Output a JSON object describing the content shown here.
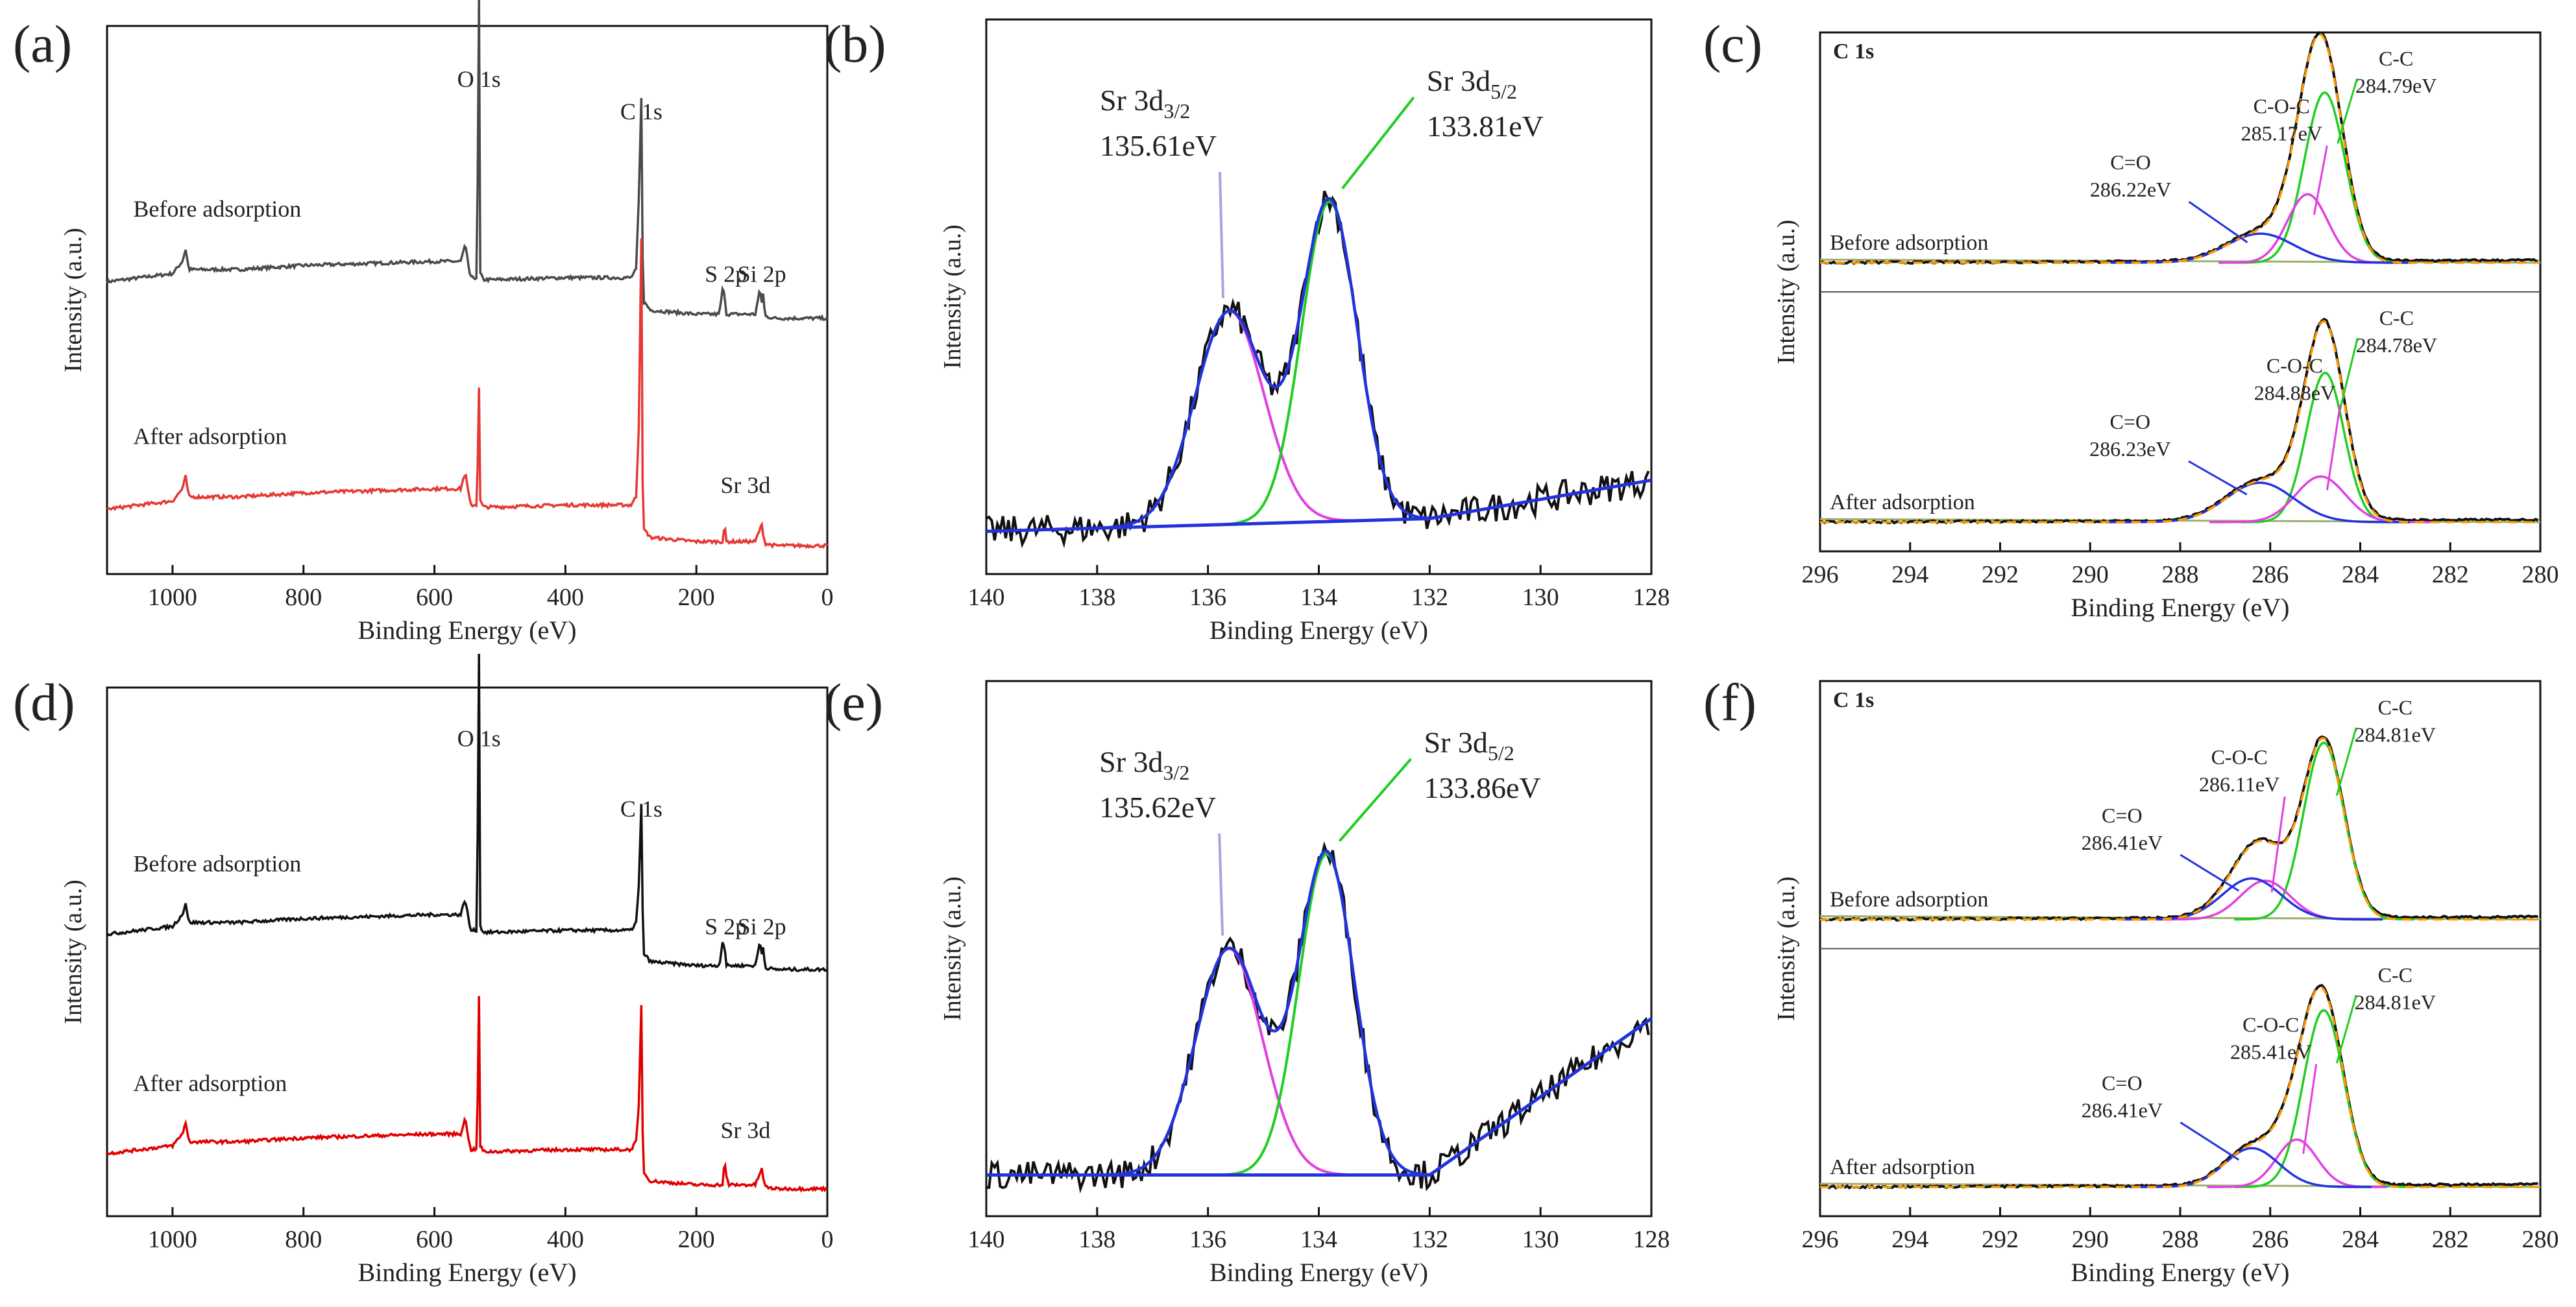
{
  "figure": {
    "description_labels": [
      "(a)",
      "(b)",
      "(c)",
      "(d)",
      "(e)",
      "(f)"
    ]
  },
  "chart_data": [
    {
      "id": "a",
      "type": "line",
      "panel_label": "(a)",
      "xlabel": "Binding Energy (eV)",
      "ylabel": "Intensity (a.u.)",
      "xlim": [
        1100,
        0
      ],
      "xticks": [
        1000,
        800,
        600,
        400,
        200,
        0
      ],
      "series": [
        {
          "name": "Before adsorption",
          "color": "#4a4a4a",
          "offset": 0.62,
          "x": [
            1100,
            1000,
            985,
            980,
            975,
            900,
            800,
            700,
            600,
            560,
            553,
            545,
            535,
            532,
            530,
            525,
            510,
            400,
            300,
            292,
            288,
            284,
            282,
            280,
            270,
            200,
            165,
            160,
            157,
            154,
            150,
            110,
            103,
            100,
            98,
            95,
            80,
            0
          ],
          "y": [
            0.0,
            0.02,
            0.05,
            0.08,
            0.03,
            0.03,
            0.04,
            0.045,
            0.05,
            0.05,
            0.09,
            0.01,
            0.01,
            0.7,
            0.02,
            0.005,
            0.005,
            0.01,
            0.01,
            0.03,
            0.2,
            0.45,
            0.06,
            -0.05,
            -0.07,
            -0.08,
            -0.08,
            -0.02,
            -0.03,
            -0.08,
            -0.08,
            -0.08,
            -0.02,
            -0.05,
            -0.03,
            -0.085,
            -0.09,
            -0.09
          ]
        },
        {
          "name": "After adsorption",
          "color": "#e53935",
          "offset": 0.06,
          "x": [
            1100,
            1000,
            985,
            980,
            975,
            900,
            800,
            700,
            600,
            560,
            553,
            545,
            535,
            532,
            530,
            525,
            510,
            400,
            300,
            292,
            288,
            284,
            282,
            280,
            270,
            200,
            160,
            157,
            154,
            150,
            110,
            103,
            100,
            98,
            95,
            80,
            0
          ],
          "y": [
            0.0,
            0.02,
            0.05,
            0.08,
            0.03,
            0.03,
            0.04,
            0.045,
            0.05,
            0.05,
            0.09,
            0.01,
            0.01,
            0.3,
            0.02,
            0.005,
            0.005,
            0.01,
            0.01,
            0.03,
            0.2,
            0.67,
            0.06,
            -0.05,
            -0.07,
            -0.08,
            -0.08,
            -0.04,
            -0.08,
            -0.08,
            -0.08,
            -0.05,
            -0.04,
            -0.06,
            -0.085,
            -0.09,
            -0.09
          ]
        }
      ],
      "annotations": [
        {
          "text": "O 1s",
          "x": 532,
          "y": 1.1
        },
        {
          "text": "C 1s",
          "x": 284,
          "y": 1.02
        },
        {
          "text": "S 2p",
          "x": 155,
          "y": 0.62
        },
        {
          "text": "Si 2p",
          "x": 100,
          "y": 0.62
        },
        {
          "text": "Sr 3d",
          "x": 125,
          "y": 0.1
        },
        {
          "text": "Before adsorption",
          "x": 1060,
          "y": 0.78
        },
        {
          "text": "After adsorption",
          "x": 1060,
          "y": 0.22
        }
      ],
      "ylim": [
        -0.1,
        1.25
      ]
    },
    {
      "id": "b",
      "type": "line",
      "panel_label": "(b)",
      "xlabel": "Binding Energy (eV)",
      "ylabel": "Intensity (a.u.)",
      "xlim": [
        140,
        128
      ],
      "xticks": [
        140,
        138,
        136,
        134,
        132,
        130,
        128
      ],
      "ylim": [
        -0.1,
        1.2
      ],
      "baseline": {
        "x": [
          140,
          132,
          128
        ],
        "y": [
          0.0,
          0.03,
          0.12
        ]
      },
      "peaks": [
        {
          "name": "Sr 3d3/2",
          "center": 135.61,
          "height": 0.5,
          "sigma": 0.62,
          "color": "#e040e0"
        },
        {
          "name": "Sr 3d5/2",
          "center": 133.81,
          "height": 0.75,
          "sigma": 0.5,
          "color": "#22cc22"
        }
      ],
      "labels": [
        {
          "title": "Sr 3d",
          "sub": "3/2",
          "energy": "135.61eV"
        },
        {
          "title": "Sr 3d",
          "sub": "5/2",
          "energy": "133.81eV"
        }
      ]
    },
    {
      "id": "c",
      "type": "line",
      "panel_label": "(c)",
      "title": "C 1s",
      "xlabel": "Binding Energy (eV)",
      "ylabel": "Intensity (a.u.)",
      "xlim": [
        296,
        280
      ],
      "xticks": [
        296,
        294,
        292,
        290,
        288,
        286,
        284,
        282,
        280
      ],
      "spectra": [
        {
          "name": "Before adsorption",
          "peaks": [
            {
              "name": "C-C",
              "center": 284.79,
              "height": 0.82,
              "sigma": 0.45,
              "color": "#22cc22",
              "energy": "284.79eV"
            },
            {
              "name": "C-O-C",
              "center": 285.17,
              "height": 0.33,
              "sigma": 0.45,
              "color": "#e040e0",
              "energy": "285.17eV"
            },
            {
              "name": "C=O",
              "center": 286.22,
              "height": 0.14,
              "sigma": 0.75,
              "color": "#2233dd",
              "energy": "286.22eV"
            }
          ]
        },
        {
          "name": "After adsorption",
          "peaks": [
            {
              "name": "C-C",
              "center": 284.78,
              "height": 0.72,
              "sigma": 0.42,
              "color": "#22cc22",
              "energy": "284.78eV"
            },
            {
              "name": "C-O-C",
              "center": 284.88,
              "height": 0.22,
              "sigma": 0.55,
              "color": "#e040e0",
              "energy": "284.88eV"
            },
            {
              "name": "C=O",
              "center": 286.23,
              "height": 0.19,
              "sigma": 0.75,
              "color": "#2233dd",
              "energy": "286.23eV"
            }
          ]
        }
      ]
    },
    {
      "id": "d",
      "type": "line",
      "panel_label": "(d)",
      "xlabel": "Binding Energy (eV)",
      "ylabel": "Intensity (a.u.)",
      "xlim": [
        1100,
        0
      ],
      "xticks": [
        1000,
        800,
        600,
        400,
        200,
        0
      ],
      "series": [
        {
          "name": "Before adsorption",
          "color": "#111111",
          "offset": 0.62,
          "x": [
            1100,
            1000,
            985,
            980,
            975,
            900,
            800,
            700,
            600,
            560,
            553,
            545,
            535,
            532,
            530,
            525,
            510,
            400,
            300,
            292,
            288,
            284,
            282,
            280,
            270,
            200,
            165,
            160,
            157,
            154,
            150,
            110,
            103,
            100,
            98,
            95,
            80,
            0
          ],
          "y": [
            0.0,
            0.02,
            0.05,
            0.08,
            0.03,
            0.03,
            0.04,
            0.045,
            0.05,
            0.05,
            0.09,
            0.01,
            0.01,
            0.72,
            0.02,
            0.005,
            0.005,
            0.01,
            0.01,
            0.03,
            0.12,
            0.33,
            0.06,
            -0.05,
            -0.07,
            -0.08,
            -0.08,
            -0.02,
            -0.03,
            -0.08,
            -0.08,
            -0.08,
            -0.02,
            -0.05,
            -0.03,
            -0.085,
            -0.09,
            -0.09
          ]
        },
        {
          "name": "After adsorption",
          "color": "#e00000",
          "offset": 0.06,
          "x": [
            1100,
            1000,
            985,
            980,
            975,
            900,
            800,
            700,
            600,
            560,
            553,
            545,
            535,
            532,
            530,
            525,
            510,
            400,
            300,
            292,
            288,
            284,
            282,
            280,
            270,
            200,
            160,
            157,
            154,
            150,
            110,
            103,
            100,
            98,
            95,
            80,
            0
          ],
          "y": [
            0.0,
            0.02,
            0.05,
            0.08,
            0.03,
            0.03,
            0.04,
            0.045,
            0.05,
            0.05,
            0.09,
            0.01,
            0.01,
            0.4,
            0.02,
            0.005,
            0.005,
            0.01,
            0.01,
            0.03,
            0.12,
            0.38,
            0.06,
            -0.05,
            -0.07,
            -0.08,
            -0.08,
            -0.02,
            -0.06,
            -0.08,
            -0.08,
            -0.05,
            -0.04,
            -0.06,
            -0.085,
            -0.09,
            -0.09
          ]
        }
      ],
      "annotations": [
        {
          "text": "O 1s",
          "x": 532,
          "y": 1.1
        },
        {
          "text": "C 1s",
          "x": 284,
          "y": 0.92
        },
        {
          "text": "S 2p",
          "x": 155,
          "y": 0.62
        },
        {
          "text": "Si 2p",
          "x": 100,
          "y": 0.62
        },
        {
          "text": "Sr 3d",
          "x": 125,
          "y": 0.1
        },
        {
          "text": "Before adsorption",
          "x": 1060,
          "y": 0.78
        },
        {
          "text": "After adsorption",
          "x": 1060,
          "y": 0.22
        }
      ],
      "ylim": [
        -0.1,
        1.25
      ]
    },
    {
      "id": "e",
      "type": "line",
      "panel_label": "(e)",
      "xlabel": "Binding Energy (eV)",
      "ylabel": "Intensity (a.u.)",
      "xlim": [
        140,
        128
      ],
      "xticks": [
        140,
        138,
        136,
        134,
        132,
        130,
        128
      ],
      "ylim": [
        -0.1,
        1.2
      ],
      "baseline": {
        "x": [
          140,
          132,
          128
        ],
        "y": [
          0.0,
          0.0,
          0.38
        ]
      },
      "peaks": [
        {
          "name": "Sr 3d3/2",
          "center": 135.62,
          "height": 0.55,
          "sigma": 0.6,
          "color": "#e040e0"
        },
        {
          "name": "Sr 3d5/2",
          "center": 133.86,
          "height": 0.78,
          "sigma": 0.5,
          "color": "#22cc22"
        }
      ],
      "labels": [
        {
          "title": "Sr 3d",
          "sub": "3/2",
          "energy": "135.62eV"
        },
        {
          "title": "Sr 3d",
          "sub": "5/2",
          "energy": "133.86eV"
        }
      ]
    },
    {
      "id": "f",
      "type": "line",
      "panel_label": "(f)",
      "title": "C 1s",
      "xlabel": "Binding Energy (eV)",
      "ylabel": "Intensity (a.u.)",
      "xlim": [
        296,
        280
      ],
      "xticks": [
        296,
        294,
        292,
        290,
        288,
        286,
        284,
        282,
        280
      ],
      "spectra": [
        {
          "name": "Before adsorption",
          "peaks": [
            {
              "name": "C-C",
              "center": 284.81,
              "height": 0.82,
              "sigma": 0.45,
              "color": "#22cc22",
              "energy": "284.81eV"
            },
            {
              "name": "C-O-C",
              "center": 286.11,
              "height": 0.18,
              "sigma": 0.55,
              "color": "#e040e0",
              "energy": "286.11eV"
            },
            {
              "name": "C=O",
              "center": 286.41,
              "height": 0.19,
              "sigma": 0.65,
              "color": "#2233dd",
              "energy": "286.41eV"
            }
          ]
        },
        {
          "name": "After adsorption",
          "peaks": [
            {
              "name": "C-C",
              "center": 284.81,
              "height": 0.82,
              "sigma": 0.45,
              "color": "#22cc22",
              "energy": "284.81eV"
            },
            {
              "name": "C-O-C",
              "center": 285.41,
              "height": 0.22,
              "sigma": 0.45,
              "color": "#e040e0",
              "energy": "285.41eV"
            },
            {
              "name": "C=O",
              "center": 286.41,
              "height": 0.18,
              "sigma": 0.6,
              "color": "#2233dd",
              "energy": "286.41eV"
            }
          ]
        }
      ]
    }
  ]
}
